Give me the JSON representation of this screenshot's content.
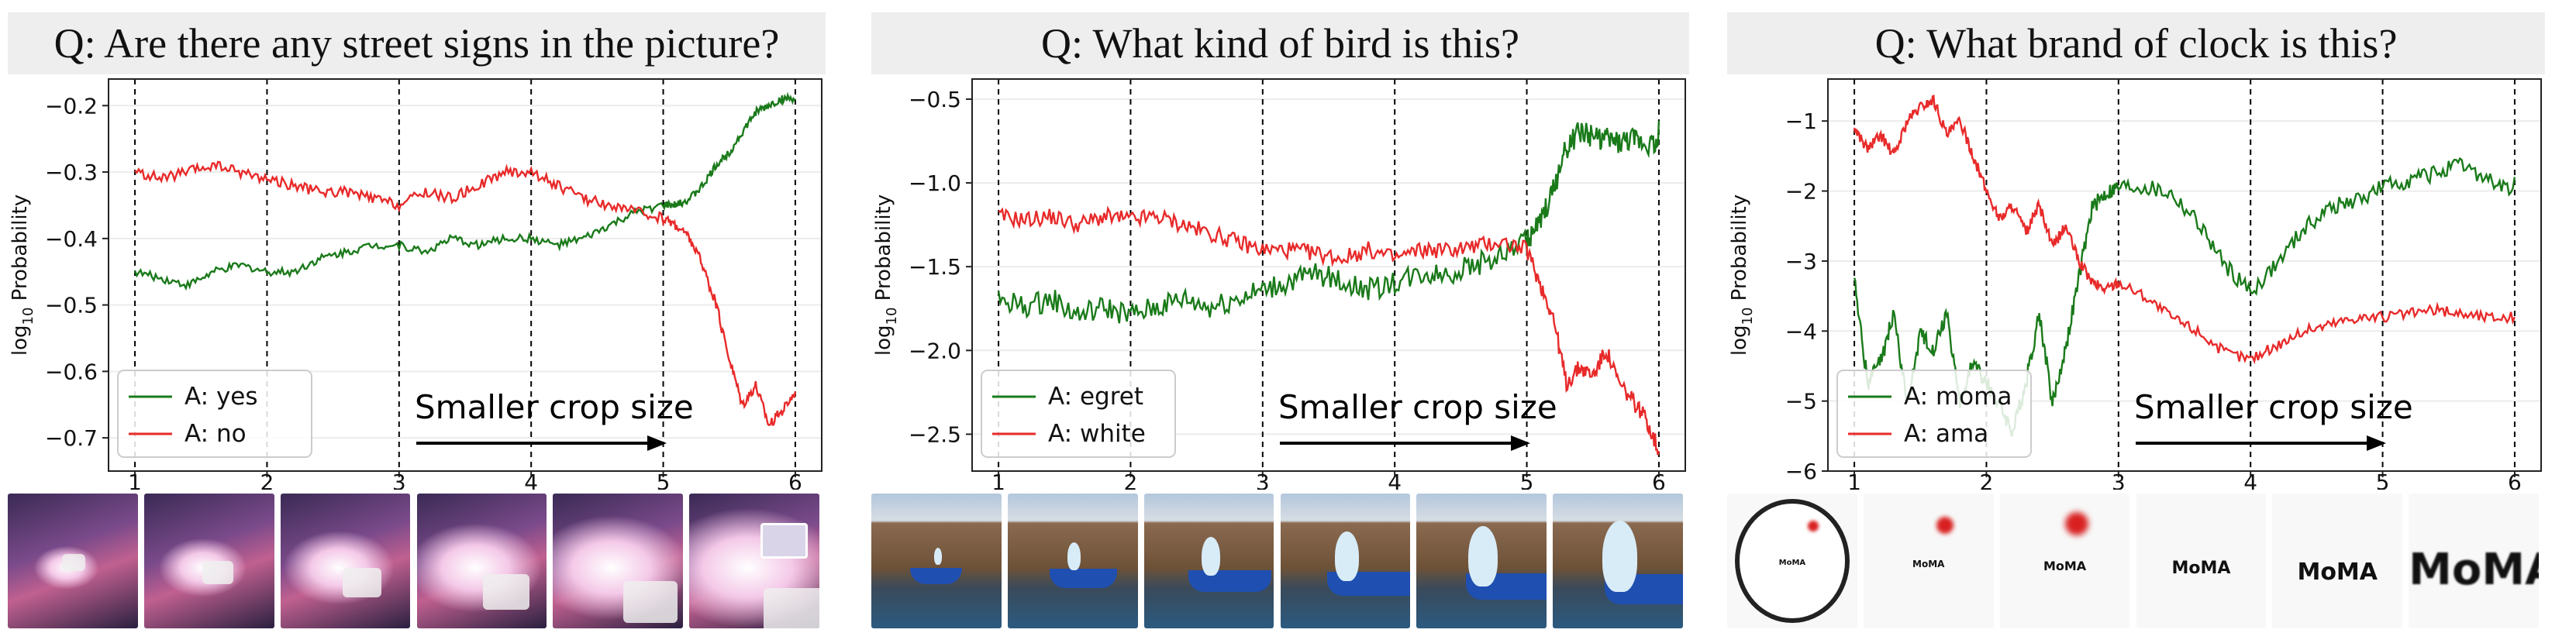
{
  "panels": [
    {
      "question": "Q: Are there any street signs in the picture?",
      "annotation": "Smaller crop size",
      "thumb_theme": "street-night",
      "chart_data": {
        "type": "line",
        "ylabel_base": "log",
        "ylabel_sub": "10",
        "ylabel_rest": " Probability",
        "xlim": [
          0.8,
          6.2
        ],
        "ylim": [
          -0.75,
          -0.16
        ],
        "xticks": [
          1,
          2,
          3,
          4,
          5,
          6
        ],
        "yticks": [
          -0.7,
          -0.6,
          -0.5,
          -0.4,
          -0.3,
          -0.2
        ],
        "ytick_labels": [
          "−0.7",
          "−0.6",
          "−0.5",
          "−0.4",
          "−0.3",
          "−0.2"
        ],
        "vlines": [
          1,
          2,
          3,
          4,
          5,
          6
        ],
        "legend_position": "bottom-left",
        "series": [
          {
            "name": "A: yes",
            "color": "#1a7a1a",
            "x": [
              1.0,
              1.2,
              1.4,
              1.6,
              1.8,
              2.0,
              2.2,
              2.4,
              2.6,
              2.8,
              3.0,
              3.2,
              3.4,
              3.6,
              3.8,
              4.0,
              4.2,
              4.4,
              4.6,
              4.8,
              5.0,
              5.1,
              5.2,
              5.3,
              5.4,
              5.5,
              5.6,
              5.7,
              5.8,
              5.9,
              6.0
            ],
            "y": [
              -0.45,
              -0.46,
              -0.47,
              -0.45,
              -0.44,
              -0.45,
              -0.45,
              -0.43,
              -0.42,
              -0.41,
              -0.41,
              -0.42,
              -0.4,
              -0.41,
              -0.4,
              -0.4,
              -0.41,
              -0.4,
              -0.38,
              -0.36,
              -0.35,
              -0.35,
              -0.34,
              -0.32,
              -0.29,
              -0.27,
              -0.24,
              -0.21,
              -0.2,
              -0.19,
              -0.19
            ],
            "noise": 0.006
          },
          {
            "name": "A: no",
            "color": "#e82a2a",
            "x": [
              1.0,
              1.2,
              1.4,
              1.6,
              1.8,
              2.0,
              2.2,
              2.4,
              2.6,
              2.8,
              3.0,
              3.2,
              3.4,
              3.6,
              3.8,
              4.0,
              4.2,
              4.4,
              4.6,
              4.8,
              5.0,
              5.1,
              5.2,
              5.3,
              5.4,
              5.5,
              5.6,
              5.7,
              5.8,
              5.9,
              6.0
            ],
            "y": [
              -0.3,
              -0.31,
              -0.3,
              -0.29,
              -0.3,
              -0.31,
              -0.32,
              -0.33,
              -0.33,
              -0.34,
              -0.35,
              -0.33,
              -0.34,
              -0.32,
              -0.3,
              -0.3,
              -0.32,
              -0.34,
              -0.35,
              -0.36,
              -0.37,
              -0.38,
              -0.4,
              -0.44,
              -0.5,
              -0.58,
              -0.65,
              -0.62,
              -0.68,
              -0.66,
              -0.63
            ],
            "noise": 0.008
          }
        ]
      }
    },
    {
      "question": "Q: What kind of bird is this?",
      "annotation": "Smaller crop size",
      "thumb_theme": "bird-dock",
      "chart_data": {
        "type": "line",
        "ylabel_base": "log",
        "ylabel_sub": "10",
        "ylabel_rest": " Probability",
        "xlim": [
          0.8,
          6.2
        ],
        "ylim": [
          -2.72,
          -0.38
        ],
        "xticks": [
          1,
          2,
          3,
          4,
          5,
          6
        ],
        "yticks": [
          -2.5,
          -2.0,
          -1.5,
          -1.0,
          -0.5
        ],
        "ytick_labels": [
          "−2.5",
          "−2.0",
          "−1.5",
          "−1.0",
          "−0.5"
        ],
        "vlines": [
          1,
          2,
          3,
          4,
          5,
          6
        ],
        "legend_position": "bottom-left",
        "series": [
          {
            "name": "A: egret",
            "color": "#1a7a1a",
            "x": [
              1.0,
              1.2,
              1.4,
              1.6,
              1.8,
              2.0,
              2.2,
              2.4,
              2.6,
              2.8,
              3.0,
              3.2,
              3.4,
              3.6,
              3.8,
              4.0,
              4.2,
              4.4,
              4.6,
              4.8,
              5.0,
              5.1,
              5.2,
              5.3,
              5.4,
              5.5,
              5.6,
              5.7,
              5.8,
              5.9,
              6.0
            ],
            "y": [
              -1.55,
              -1.6,
              -1.55,
              -1.65,
              -1.6,
              -1.65,
              -1.6,
              -1.55,
              -1.6,
              -1.55,
              -1.5,
              -1.45,
              -1.4,
              -1.45,
              -1.5,
              -1.45,
              -1.4,
              -1.4,
              -1.35,
              -1.3,
              -1.2,
              -1.1,
              -0.9,
              -0.65,
              -0.55,
              -0.58,
              -0.6,
              -0.62,
              -0.6,
              -0.62,
              -0.63
            ],
            "noise": 0.07
          },
          {
            "name": "A: white",
            "color": "#e82a2a",
            "x": [
              1.0,
              1.2,
              1.4,
              1.6,
              1.8,
              2.0,
              2.2,
              2.4,
              2.6,
              2.8,
              3.0,
              3.2,
              3.4,
              3.6,
              3.8,
              4.0,
              4.2,
              4.4,
              4.6,
              4.8,
              5.0,
              5.1,
              5.2,
              5.3,
              5.4,
              5.5,
              5.6,
              5.7,
              5.8,
              5.9,
              6.0
            ],
            "y": [
              -1.2,
              -1.22,
              -1.2,
              -1.25,
              -1.2,
              -1.22,
              -1.2,
              -1.25,
              -1.3,
              -1.35,
              -1.4,
              -1.4,
              -1.42,
              -1.45,
              -1.4,
              -1.45,
              -1.4,
              -1.4,
              -1.38,
              -1.35,
              -1.4,
              -1.6,
              -1.8,
              -2.2,
              -2.1,
              -2.15,
              -2.0,
              -2.2,
              -2.3,
              -2.4,
              -2.6
            ],
            "noise": 0.05
          }
        ]
      }
    },
    {
      "question": "Q: What brand of clock is this?",
      "annotation": "Smaller crop size",
      "thumb_theme": "clock-moma",
      "thumb_words": [
        "MoMA",
        "MoMA",
        "MoMA",
        "MoMA",
        "MoMA",
        "MoMA"
      ],
      "chart_data": {
        "type": "line",
        "ylabel_base": "log",
        "ylabel_sub": "10",
        "ylabel_rest": " Probability",
        "xlim": [
          0.8,
          6.2
        ],
        "ylim": [
          -6.0,
          -0.4
        ],
        "xticks": [
          1,
          2,
          3,
          4,
          5,
          6
        ],
        "yticks": [
          -6,
          -5,
          -4,
          -3,
          -2,
          -1
        ],
        "ytick_labels": [
          "−6",
          "−5",
          "−4",
          "−3",
          "−2",
          "−1"
        ],
        "vlines": [
          1,
          2,
          3,
          4,
          5,
          6
        ],
        "legend_position": "bottom-left",
        "series": [
          {
            "name": "A: moma",
            "color": "#1a7a1a",
            "x": [
              1.0,
              1.1,
              1.2,
              1.3,
              1.4,
              1.5,
              1.6,
              1.7,
              1.8,
              1.9,
              2.0,
              2.1,
              2.2,
              2.3,
              2.4,
              2.5,
              2.6,
              2.7,
              2.8,
              2.9,
              3.0,
              3.2,
              3.4,
              3.6,
              3.8,
              4.0,
              4.2,
              4.4,
              4.6,
              4.8,
              5.0,
              5.2,
              5.4,
              5.6,
              5.8,
              6.0
            ],
            "y": [
              -3.0,
              -4.5,
              -4.2,
              -3.5,
              -4.8,
              -3.8,
              -4.0,
              -3.5,
              -4.8,
              -4.2,
              -4.5,
              -4.8,
              -5.2,
              -4.5,
              -3.5,
              -4.8,
              -4.0,
              -3.0,
              -2.0,
              -1.8,
              -1.7,
              -1.7,
              -1.8,
              -2.2,
              -2.8,
              -3.2,
              -2.8,
              -2.3,
              -2.0,
              -1.9,
              -1.7,
              -1.6,
              -1.5,
              -1.4,
              -1.6,
              -1.8
            ],
            "noise": 0.12
          },
          {
            "name": "A: ama",
            "color": "#e82a2a",
            "x": [
              1.0,
              1.1,
              1.2,
              1.3,
              1.4,
              1.5,
              1.6,
              1.7,
              1.8,
              1.9,
              2.0,
              2.1,
              2.2,
              2.3,
              2.4,
              2.5,
              2.6,
              2.7,
              2.8,
              2.9,
              3.0,
              3.2,
              3.4,
              3.6,
              3.8,
              4.0,
              4.2,
              4.4,
              4.6,
              4.8,
              5.0,
              5.2,
              5.4,
              5.6,
              5.8,
              6.0
            ],
            "y": [
              -1.1,
              -1.4,
              -1.2,
              -1.5,
              -1.0,
              -0.8,
              -0.7,
              -1.2,
              -1.0,
              -1.5,
              -2.0,
              -2.4,
              -2.2,
              -2.6,
              -2.2,
              -2.8,
              -2.5,
              -3.0,
              -3.3,
              -3.4,
              -3.3,
              -3.5,
              -3.8,
              -4.0,
              -4.3,
              -4.4,
              -4.2,
              -4.0,
              -3.9,
              -3.8,
              -3.8,
              -3.75,
              -3.7,
              -3.75,
              -3.8,
              -3.8
            ],
            "noise": 0.08
          }
        ]
      }
    }
  ]
}
